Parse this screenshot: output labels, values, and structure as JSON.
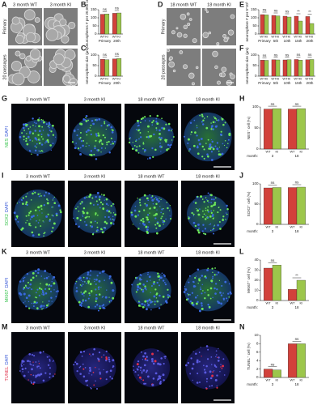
{
  "figure": {
    "panel_labels": [
      "A",
      "B",
      "C",
      "D",
      "E",
      "F",
      "G",
      "H",
      "I",
      "J",
      "K",
      "L",
      "M",
      "N"
    ],
    "A": {
      "columns": [
        "3 month WT",
        "3 month KI"
      ],
      "rows": [
        "Primary",
        "20 passages"
      ]
    },
    "D": {
      "columns": [
        "18 month WT",
        "18 month KI"
      ],
      "rows": [
        "Primary",
        "20 passages"
      ]
    },
    "stain_columns": [
      "3 month WT",
      "3 month KI",
      "18 month WT",
      "18 month KI"
    ],
    "stains": [
      {
        "marker": "NES",
        "counter": "DAPI"
      },
      {
        "marker": "SOX2",
        "counter": "DAPI"
      },
      {
        "marker": "MKI67",
        "counter": "DAPI"
      },
      {
        "marker": "TUNEL",
        "counter": "DAPI"
      }
    ]
  },
  "chart_data": [
    {
      "type": "bar",
      "ylabel": "Neurospheres # per 20,000 cells",
      "categories": [
        "Primary",
        "20th"
      ],
      "ylim": [
        0,
        150
      ],
      "yticks": [
        0,
        50,
        100,
        150
      ],
      "series": [
        {
          "name": "WT",
          "color": "#d2413b",
          "values": [
            122,
            128
          ]
        },
        {
          "name": "KI",
          "color": "#9cc64b",
          "values": [
            124,
            130
          ]
        }
      ],
      "annotations": [
        "ns",
        "ns"
      ]
    },
    {
      "type": "bar",
      "ylabel": "neurosphere size (μm)",
      "categories": [
        "Primary",
        "20th"
      ],
      "ylim": [
        0,
        100
      ],
      "yticks": [
        0,
        50,
        100
      ],
      "series": [
        {
          "name": "WT",
          "color": "#d2413b",
          "values": [
            80,
            82
          ]
        },
        {
          "name": "KI",
          "color": "#9cc64b",
          "values": [
            78,
            84
          ]
        }
      ],
      "annotations": [
        "ns",
        "ns"
      ]
    },
    {
      "type": "bar",
      "ylabel": "neurosphere # per 5*10³",
      "categories": [
        "Primary",
        "5th",
        "10th",
        "15th",
        "20th"
      ],
      "ylim": [
        0,
        150
      ],
      "yticks": [
        0,
        50,
        100,
        150
      ],
      "series": [
        {
          "name": "WT",
          "color": "#d2413b",
          "values": [
            120,
            115,
            110,
            110,
            108
          ]
        },
        {
          "name": "KI",
          "color": "#9cc64b",
          "values": [
            118,
            112,
            105,
            80,
            65
          ]
        }
      ],
      "annotations": [
        "ns",
        "ns",
        "ns",
        "**",
        "**"
      ]
    },
    {
      "type": "bar",
      "ylabel": "neurosphere size (μm)",
      "categories": [
        "Primary",
        "5th",
        "10th",
        "15th",
        "20th"
      ],
      "ylim": [
        0,
        100
      ],
      "yticks": [
        0,
        50,
        100
      ],
      "series": [
        {
          "name": "WT",
          "color": "#d2413b",
          "values": [
            76,
            78,
            77,
            79,
            78
          ]
        },
        {
          "name": "KI",
          "color": "#9cc64b",
          "values": [
            75,
            77,
            78,
            76,
            79
          ]
        }
      ],
      "annotations": [
        "ns",
        "ns",
        "ns",
        "ns",
        "ns"
      ]
    },
    {
      "type": "bar",
      "ylabel": "NES⁺ cell (%)",
      "xlabel": "month:",
      "categories": [
        "3",
        "18"
      ],
      "ylim": [
        0,
        100
      ],
      "yticks": [
        0,
        50,
        100
      ],
      "series": [
        {
          "name": "WT",
          "color": "#d2413b",
          "values": [
            95,
            95
          ]
        },
        {
          "name": "KI",
          "color": "#9cc64b",
          "values": [
            96,
            96
          ]
        }
      ],
      "annotations": [
        "ns",
        "ns"
      ]
    },
    {
      "type": "bar",
      "ylabel": "SOX2⁺ cell (%)",
      "xlabel": "month:",
      "categories": [
        "3",
        "18"
      ],
      "ylim": [
        0,
        100
      ],
      "yticks": [
        0,
        50,
        100
      ],
      "series": [
        {
          "name": "WT",
          "color": "#d2413b",
          "values": [
            90,
            91
          ]
        },
        {
          "name": "KI",
          "color": "#9cc64b",
          "values": [
            91,
            92
          ]
        }
      ],
      "annotations": [
        "ns",
        "ns"
      ]
    },
    {
      "type": "bar",
      "ylabel": "MKI67⁺ cell (%)",
      "xlabel": "month:",
      "categories": [
        "3",
        "18"
      ],
      "ylim": [
        0,
        40
      ],
      "yticks": [
        0,
        10,
        20,
        30,
        40
      ],
      "series": [
        {
          "name": "WT",
          "color": "#d2413b",
          "values": [
            32,
            11
          ]
        },
        {
          "name": "KI",
          "color": "#9cc64b",
          "values": [
            35,
            20
          ]
        }
      ],
      "annotations": [
        "ns",
        "**"
      ]
    },
    {
      "type": "bar",
      "ylabel": "TUNEL⁺ cell (%)",
      "xlabel": "month:",
      "categories": [
        "3",
        "18"
      ],
      "ylim": [
        0,
        10
      ],
      "yticks": [
        0,
        2,
        4,
        6,
        8,
        10
      ],
      "series": [
        {
          "name": "WT",
          "color": "#d2413b",
          "values": [
            2,
            8
          ]
        },
        {
          "name": "KI",
          "color": "#9cc64b",
          "values": [
            1.8,
            8
          ]
        }
      ],
      "annotations": [
        "ns",
        "ns"
      ]
    }
  ]
}
